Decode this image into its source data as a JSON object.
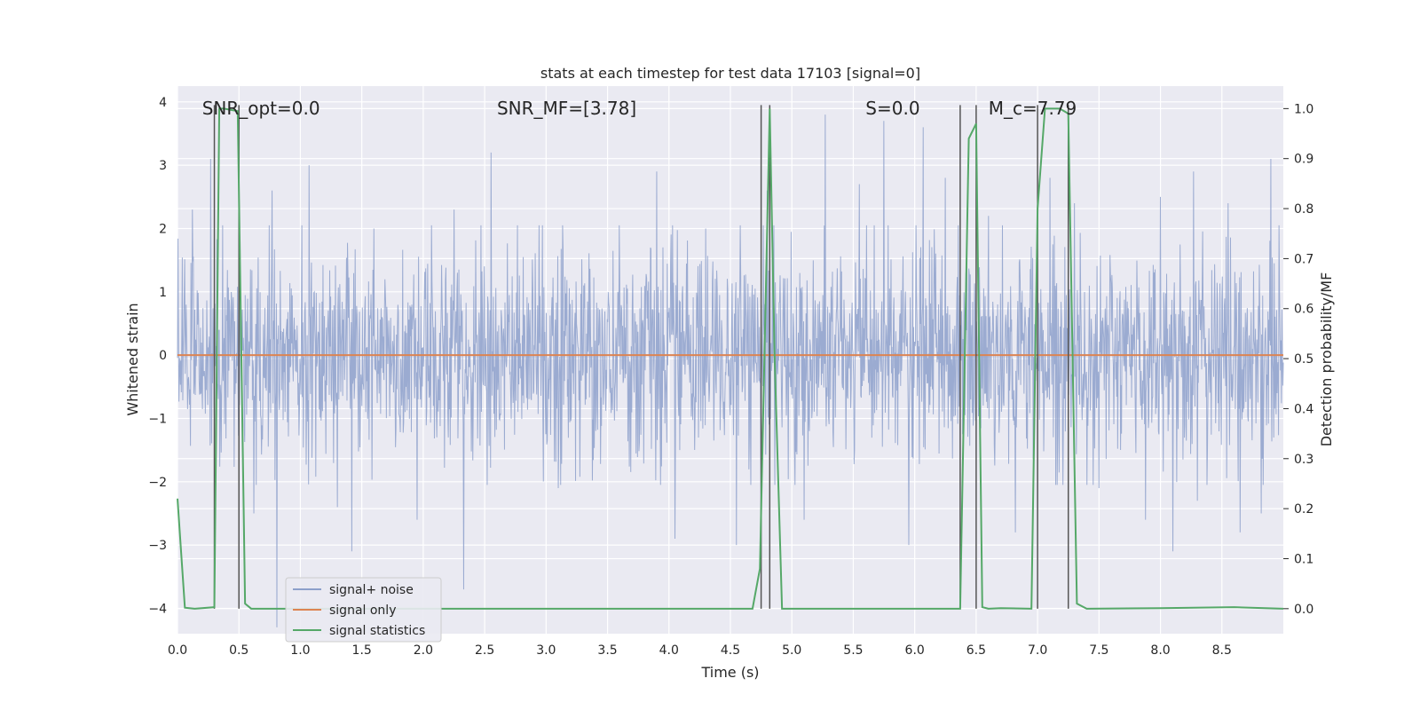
{
  "chart_data": {
    "type": "line",
    "title": "stats at each timestep for test data 17103 [signal=0]",
    "xlabel": "Time (s)",
    "ylabel_left": "Whitened strain",
    "ylabel_right": "Detection probability/MF",
    "xlim": [
      0.0,
      9.0
    ],
    "ylim_left": [
      -4.4,
      4.25
    ],
    "ylim_right": [
      -0.05,
      1.045
    ],
    "x_ticks": [
      0.0,
      0.5,
      1.0,
      1.5,
      2.0,
      2.5,
      3.0,
      3.5,
      4.0,
      4.5,
      5.0,
      5.5,
      6.0,
      6.5,
      7.0,
      7.5,
      8.0,
      8.5
    ],
    "x_tick_labels": [
      "0.0",
      "0.5",
      "1.0",
      "1.5",
      "2.0",
      "2.5",
      "3.0",
      "3.5",
      "4.0",
      "4.5",
      "5.0",
      "5.5",
      "6.0",
      "6.5",
      "7.0",
      "7.5",
      "8.0",
      "8.5"
    ],
    "y_left_ticks": [
      -4,
      -3,
      -2,
      -1,
      0,
      1,
      2,
      3,
      4
    ],
    "y_left_tick_labels": [
      "−4",
      "−3",
      "−2",
      "−1",
      "0",
      "1",
      "2",
      "3",
      "4"
    ],
    "y_right_ticks": [
      0.0,
      0.1,
      0.2,
      0.3,
      0.4,
      0.5,
      0.6,
      0.7,
      0.8,
      0.9,
      1.0
    ],
    "y_right_tick_labels": [
      "0.0",
      "0.1",
      "0.2",
      "0.3",
      "0.4",
      "0.5",
      "0.6",
      "0.7",
      "0.8",
      "0.9",
      "1.0"
    ],
    "grid": true,
    "annotations": [
      {
        "text": "SNR_opt=0.0",
        "x": 0.2,
        "y": 3.9
      },
      {
        "text": "SNR_MF=[3.78]",
        "x": 2.6,
        "y": 3.9
      },
      {
        "text": "S=0.0",
        "x": 5.6,
        "y": 3.9
      },
      {
        "text": "M_c=7.79",
        "x": 6.6,
        "y": 3.9
      }
    ],
    "vertical_lines": [
      0.3,
      0.5,
      4.75,
      4.82,
      6.37,
      6.5,
      7.0,
      7.25
    ],
    "legend": {
      "location": "lower-left",
      "entries": [
        {
          "label": "signal+ noise",
          "color": "#8da0cb"
        },
        {
          "label": "signal only",
          "color": "#dd8452"
        },
        {
          "label": "signal statistics",
          "color": "#55a868"
        }
      ]
    },
    "series": [
      {
        "name": "signal+ noise",
        "axis": "left",
        "style": "noise",
        "n_samples": 2304,
        "typical_envelope": 1.5,
        "peaks": [
          [
            0.27,
            3.1
          ],
          [
            0.12,
            2.3
          ],
          [
            0.5,
            2.5
          ],
          [
            0.62,
            -2.5
          ],
          [
            0.77,
            2.6
          ],
          [
            0.81,
            -4.3
          ],
          [
            1.07,
            3.0
          ],
          [
            1.3,
            -2.4
          ],
          [
            1.42,
            -3.1
          ],
          [
            1.6,
            2.0
          ],
          [
            1.95,
            -2.6
          ],
          [
            2.25,
            2.3
          ],
          [
            2.33,
            -3.7
          ],
          [
            2.55,
            3.2
          ],
          [
            3.1,
            -2.1
          ],
          [
            3.9,
            2.9
          ],
          [
            4.05,
            -2.9
          ],
          [
            4.3,
            2.0
          ],
          [
            4.55,
            -3.0
          ],
          [
            4.8,
            2.6
          ],
          [
            4.75,
            -2.5
          ],
          [
            5.1,
            -2.6
          ],
          [
            5.27,
            3.8
          ],
          [
            5.55,
            2.7
          ],
          [
            5.75,
            3.7
          ],
          [
            5.95,
            -3.0
          ],
          [
            6.07,
            3.6
          ],
          [
            6.25,
            2.8
          ],
          [
            6.6,
            2.2
          ],
          [
            6.82,
            -2.8
          ],
          [
            7.1,
            2.8
          ],
          [
            7.3,
            2.4
          ],
          [
            7.5,
            -2.1
          ],
          [
            7.88,
            -2.6
          ],
          [
            8.0,
            2.5
          ],
          [
            8.1,
            -3.1
          ],
          [
            8.27,
            2.9
          ],
          [
            8.3,
            -2.3
          ],
          [
            8.55,
            2.4
          ],
          [
            8.65,
            -2.8
          ],
          [
            8.9,
            3.1
          ],
          [
            8.82,
            -2.5
          ]
        ]
      },
      {
        "name": "signal only",
        "axis": "left",
        "x": [
          0.0,
          9.0
        ],
        "y": [
          0.0,
          0.0
        ]
      },
      {
        "name": "signal statistics",
        "axis": "right",
        "x": [
          0.0,
          0.06,
          0.14,
          0.3,
          0.34,
          0.38,
          0.42,
          0.49,
          0.55,
          0.6,
          1.0,
          2.0,
          3.0,
          4.0,
          4.68,
          4.74,
          4.82,
          4.86,
          4.92,
          5.0,
          6.0,
          6.37,
          6.44,
          6.5,
          6.55,
          6.6,
          6.7,
          6.95,
          7.0,
          7.06,
          7.18,
          7.25,
          7.32,
          7.4,
          8.0,
          8.6,
          9.0
        ],
        "y": [
          0.22,
          0.002,
          0.0,
          0.003,
          1.0,
          1.0,
          0.998,
          0.995,
          0.01,
          0.0,
          0.0,
          0.0,
          0.0,
          0.0,
          0.0,
          0.08,
          1.0,
          0.5,
          0.0,
          0.0,
          0.0,
          0.0,
          0.94,
          0.97,
          0.003,
          0.0,
          0.001,
          0.0,
          0.8,
          1.0,
          1.0,
          0.99,
          0.01,
          0.0,
          0.001,
          0.003,
          0.0
        ]
      }
    ]
  }
}
